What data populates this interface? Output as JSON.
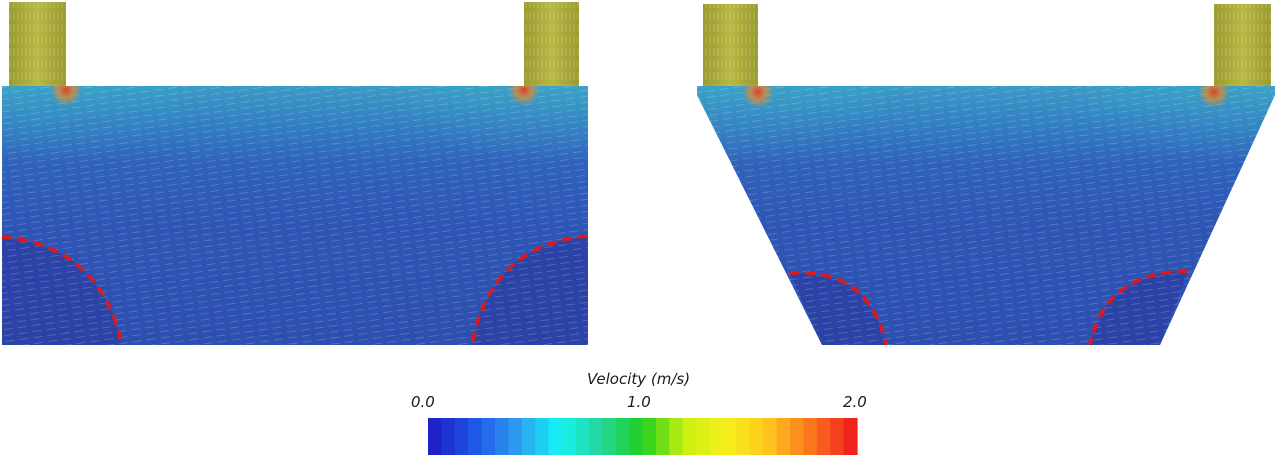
{
  "legend": {
    "title": "Velocity (m/s)",
    "ticks": [
      "0.0",
      "1.0",
      "2.0"
    ],
    "range": [
      0.0,
      2.0
    ],
    "bands": 32,
    "colors": [
      "#1e22c8",
      "#1e5ae6",
      "#2e9cf0",
      "#15f4f4",
      "#25d69a",
      "#20d020",
      "#c8f010",
      "#f6f01a",
      "#ffc71e",
      "#fb7a1d",
      "#f0241d"
    ]
  },
  "panels": [
    {
      "name": "rectangular-tank",
      "dead_zones": 2
    },
    {
      "name": "trapezoidal-tank",
      "dead_zones": 2
    }
  ],
  "colors": {
    "pipe": "#aaaa3c",
    "tank_blue": "#2f55b8",
    "tank_dark": "#2b43a6",
    "tank_cyan": "#33aac0",
    "hot": "#e0532b",
    "dead_zone_line": "#e01818"
  }
}
